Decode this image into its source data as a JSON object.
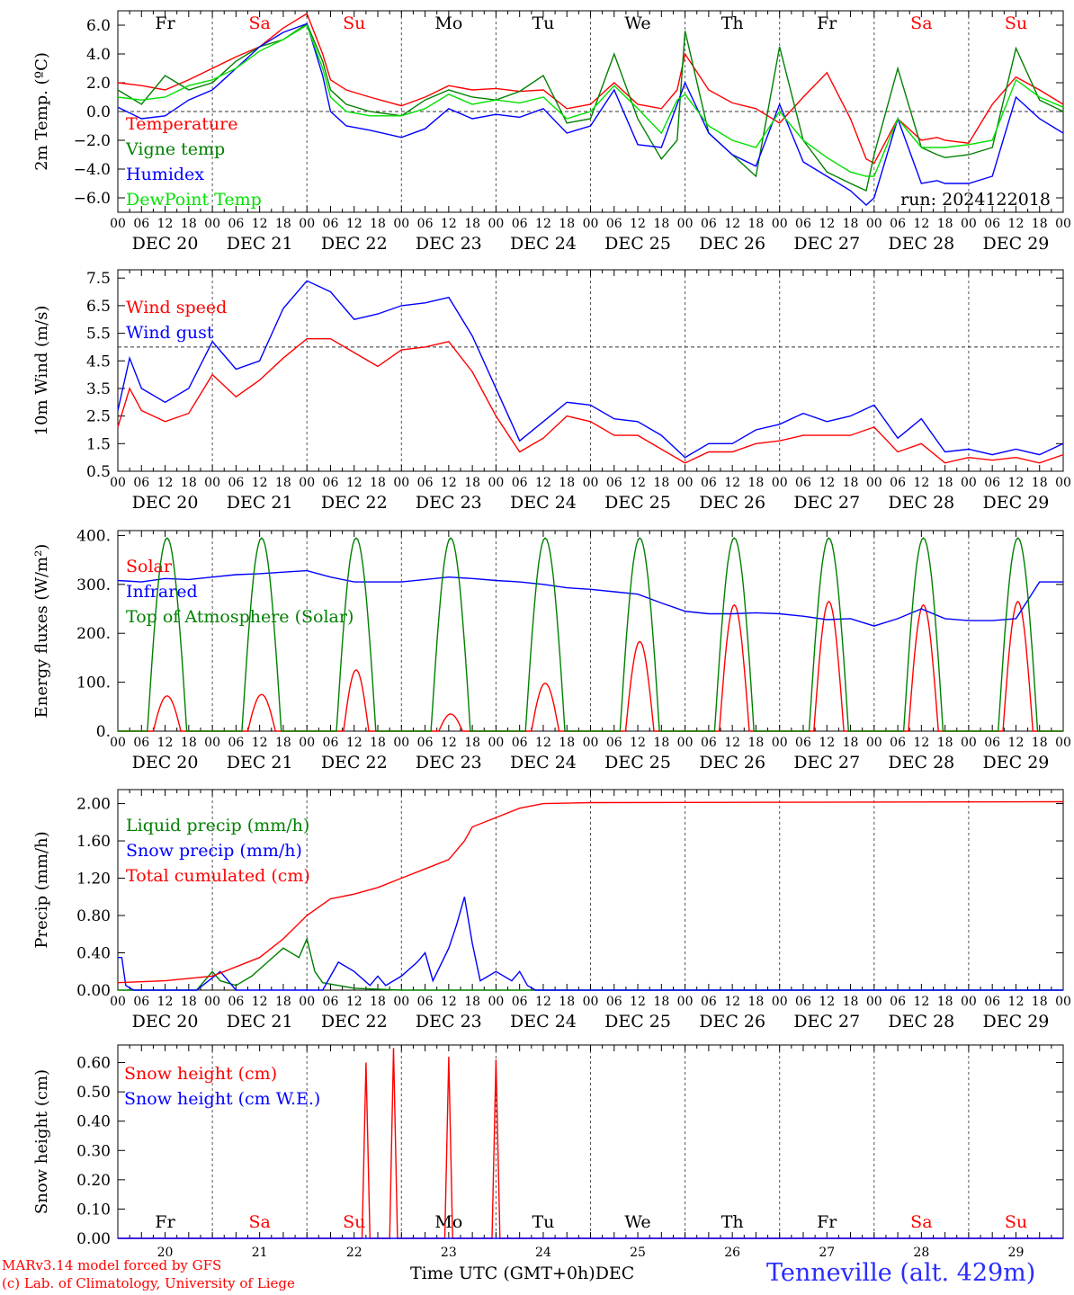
{
  "run_label": "run: 2024122018",
  "footer": {
    "model": "MARv3.14 model forced by GFS",
    "lab": "(c) Lab. of Climatology, University of Liege",
    "xlabel": "Time UTC (GMT+0h)",
    "xlabel_month": "DEC",
    "station": "Tenneville (alt. 429m)"
  },
  "weekdays": [
    {
      "label": "Fr",
      "color": "#000000"
    },
    {
      "label": "Sa",
      "color": "#ff0000"
    },
    {
      "label": "Su",
      "color": "#ff0000"
    },
    {
      "label": "Mo",
      "color": "#000000"
    },
    {
      "label": "Tu",
      "color": "#000000"
    },
    {
      "label": "We",
      "color": "#000000"
    },
    {
      "label": "Th",
      "color": "#000000"
    },
    {
      "label": "Fr",
      "color": "#000000"
    },
    {
      "label": "Sa",
      "color": "#ff0000"
    },
    {
      "label": "Su",
      "color": "#ff0000"
    }
  ],
  "date_labels": [
    "DEC 20",
    "DEC 21",
    "DEC 22",
    "DEC 23",
    "DEC 24",
    "DEC 25",
    "DEC 26",
    "DEC 27",
    "DEC 28",
    "DEC 29"
  ],
  "day_numbers": [
    "20",
    "21",
    "22",
    "23",
    "24",
    "25",
    "26",
    "27",
    "28",
    "29"
  ],
  "hour_labels": [
    "00",
    "06",
    "12",
    "18"
  ],
  "colors": {
    "red": "#ff0000",
    "green": "#008000",
    "blue": "#0000ff",
    "lightgreen": "#00e000"
  },
  "chart_data": [
    {
      "type": "line",
      "id": "temperature",
      "ylabel": "2m Temp. (ºC)",
      "x_unit": "hours since 2024-12-20 00 UTC",
      "xlim": [
        0,
        240
      ],
      "ylim": [
        -7,
        7
      ],
      "yticks": [
        -6,
        -4,
        -2,
        0,
        2,
        4,
        6
      ],
      "ytick_labels": [
        "−6.0",
        "−4.0",
        "−2.0",
        "0.0",
        "2.0",
        "4.0",
        "6.0"
      ],
      "ref_line": 0,
      "series": [
        {
          "name": "Temperature",
          "color": "#ff0000",
          "x": [
            0,
            6,
            12,
            18,
            24,
            30,
            36,
            42,
            48,
            52,
            54,
            58,
            64,
            72,
            78,
            84,
            90,
            96,
            102,
            108,
            114,
            120,
            126,
            132,
            138,
            142,
            144,
            150,
            156,
            162,
            168,
            174,
            180,
            186,
            190,
            192,
            198,
            204,
            208,
            210,
            216,
            222,
            228,
            234,
            240
          ],
          "y": [
            2.0,
            1.8,
            1.5,
            2.2,
            3.0,
            3.8,
            4.5,
            5.8,
            6.8,
            4.0,
            2.2,
            1.5,
            1.0,
            0.4,
            1.0,
            1.8,
            1.5,
            1.6,
            1.4,
            1.5,
            0.2,
            0.5,
            2.0,
            0.5,
            0.2,
            1.5,
            4.0,
            1.5,
            0.6,
            0.2,
            -0.8,
            1.0,
            2.7,
            -0.5,
            -3.3,
            -3.6,
            -0.5,
            -2.0,
            -1.8,
            -2.0,
            -2.2,
            0.5,
            2.4,
            1.5,
            0.5
          ]
        },
        {
          "name": "Vigne temp",
          "color": "#008000",
          "x": [
            0,
            6,
            12,
            18,
            24,
            30,
            36,
            42,
            48,
            52,
            54,
            58,
            64,
            72,
            78,
            84,
            90,
            96,
            102,
            108,
            114,
            120,
            126,
            132,
            138,
            142,
            144,
            150,
            156,
            162,
            168,
            174,
            180,
            186,
            190,
            192,
            198,
            204,
            208,
            210,
            216,
            222,
            228,
            234,
            240
          ],
          "y": [
            1.5,
            0.5,
            2.5,
            1.5,
            2.0,
            3.5,
            4.5,
            5.0,
            6.1,
            3.5,
            1.5,
            0.5,
            0.0,
            -0.3,
            0.8,
            1.5,
            1.0,
            0.8,
            1.4,
            2.5,
            -0.8,
            -0.5,
            4.0,
            -0.5,
            -3.3,
            -2.0,
            5.6,
            -1.5,
            -3.0,
            -4.5,
            4.5,
            -2.0,
            -4.2,
            -5.0,
            -5.5,
            -3.0,
            3.0,
            -2.5,
            -3.0,
            -3.2,
            -3.0,
            -2.5,
            4.4,
            0.8,
            0.0
          ]
        },
        {
          "name": "Humidex",
          "color": "#0000ff",
          "x": [
            0,
            6,
            12,
            18,
            24,
            30,
            36,
            42,
            48,
            52,
            54,
            58,
            64,
            72,
            78,
            84,
            90,
            96,
            102,
            108,
            114,
            120,
            126,
            132,
            138,
            142,
            144,
            150,
            156,
            162,
            168,
            174,
            180,
            186,
            190,
            192,
            198,
            204,
            208,
            210,
            216,
            222,
            228,
            234,
            240
          ],
          "y": [
            0.3,
            -0.5,
            -0.3,
            0.8,
            1.5,
            3.0,
            4.5,
            5.5,
            6.1,
            2.5,
            0.0,
            -1.0,
            -1.3,
            -1.8,
            -1.2,
            0.2,
            -0.5,
            -0.2,
            -0.4,
            0.2,
            -1.5,
            -1.0,
            1.5,
            -2.3,
            -2.5,
            0.5,
            2.0,
            -1.5,
            -3.0,
            -3.8,
            0.5,
            -3.5,
            -4.5,
            -5.5,
            -6.5,
            -6.0,
            -0.5,
            -5.0,
            -4.8,
            -5.0,
            -5.0,
            -4.5,
            1.0,
            -0.5,
            -1.5
          ]
        },
        {
          "name": "DewPoint Temp",
          "color": "#00e000",
          "x": [
            0,
            6,
            12,
            18,
            24,
            30,
            36,
            42,
            48,
            52,
            54,
            58,
            64,
            72,
            78,
            84,
            90,
            96,
            102,
            108,
            114,
            120,
            126,
            132,
            138,
            142,
            144,
            150,
            156,
            162,
            168,
            174,
            180,
            186,
            190,
            192,
            198,
            204,
            208,
            210,
            216,
            222,
            228,
            234,
            240
          ],
          "y": [
            1.0,
            0.8,
            1.0,
            1.8,
            2.2,
            3.0,
            4.2,
            5.0,
            6.0,
            3.0,
            1.0,
            0.0,
            -0.3,
            -0.3,
            0.2,
            1.2,
            0.5,
            0.8,
            0.6,
            1.0,
            -0.5,
            0.0,
            1.8,
            0.2,
            -1.5,
            0.8,
            1.2,
            -1.0,
            -2.0,
            -2.5,
            0.0,
            -2.0,
            -3.2,
            -4.2,
            -4.5,
            -4.5,
            -0.5,
            -2.5,
            -2.5,
            -2.5,
            -2.3,
            -2.0,
            2.2,
            1.0,
            0.3
          ]
        }
      ]
    },
    {
      "type": "line",
      "id": "wind",
      "ylabel": "10m Wind (m/s)",
      "x_unit": "hours since 2024-12-20 00 UTC",
      "xlim": [
        0,
        240
      ],
      "ylim": [
        0.5,
        7.8
      ],
      "yticks": [
        0.5,
        1.5,
        2.5,
        3.5,
        4.5,
        5.5,
        6.5,
        7.5
      ],
      "ytick_labels": [
        "0.5",
        "1.5",
        "2.5",
        "3.5",
        "4.5",
        "5.5",
        "6.5",
        "7.5"
      ],
      "ref_line": 5,
      "series": [
        {
          "name": "Wind speed",
          "color": "#ff0000",
          "x": [
            0,
            3,
            6,
            12,
            18,
            24,
            30,
            36,
            42,
            48,
            54,
            60,
            66,
            72,
            78,
            84,
            90,
            96,
            102,
            108,
            114,
            120,
            126,
            132,
            138,
            144,
            150,
            156,
            162,
            168,
            174,
            180,
            186,
            192,
            198,
            204,
            210,
            216,
            222,
            228,
            234,
            240
          ],
          "y": [
            2.1,
            3.5,
            2.7,
            2.3,
            2.6,
            4.0,
            3.2,
            3.8,
            4.6,
            5.3,
            5.3,
            4.8,
            4.3,
            4.9,
            5.0,
            5.2,
            4.1,
            2.5,
            1.2,
            1.7,
            2.5,
            2.3,
            1.8,
            1.8,
            1.3,
            0.8,
            1.2,
            1.2,
            1.5,
            1.6,
            1.8,
            1.8,
            1.8,
            2.1,
            1.2,
            1.5,
            0.8,
            1.0,
            0.9,
            1.0,
            0.8,
            1.1
          ]
        },
        {
          "name": "Wind gust",
          "color": "#0000ff",
          "x": [
            0,
            3,
            6,
            12,
            18,
            24,
            30,
            36,
            42,
            48,
            54,
            60,
            66,
            72,
            78,
            84,
            90,
            96,
            102,
            108,
            114,
            120,
            126,
            132,
            138,
            144,
            150,
            156,
            162,
            168,
            174,
            180,
            186,
            192,
            198,
            204,
            210,
            216,
            222,
            228,
            234,
            240
          ],
          "y": [
            2.7,
            4.6,
            3.5,
            3.0,
            3.5,
            5.2,
            4.2,
            4.5,
            6.4,
            7.4,
            7.0,
            6.0,
            6.2,
            6.5,
            6.6,
            6.8,
            5.4,
            3.5,
            1.6,
            2.3,
            3.0,
            2.9,
            2.4,
            2.3,
            1.8,
            1.0,
            1.5,
            1.5,
            2.0,
            2.2,
            2.6,
            2.3,
            2.5,
            2.9,
            1.7,
            2.4,
            1.2,
            1.3,
            1.1,
            1.3,
            1.1,
            1.5
          ]
        }
      ]
    },
    {
      "type": "line",
      "id": "energy",
      "ylabel": "Energy fluxes (W/m²)",
      "x_unit": "hours since 2024-12-20 00 UTC",
      "xlim": [
        0,
        240
      ],
      "ylim": [
        0,
        410
      ],
      "yticks": [
        0,
        100,
        200,
        300,
        400
      ],
      "ytick_labels": [
        "0.",
        "100.",
        "200.",
        "300.",
        "400."
      ],
      "series": [
        {
          "name": "Solar",
          "color": "#ff0000",
          "peaks": [
            72,
            75,
            125,
            35,
            98,
            183,
            258,
            265,
            258,
            265
          ]
        },
        {
          "name": "Infrared",
          "color": "#0000ff",
          "x": [
            0,
            6,
            12,
            18,
            24,
            30,
            36,
            42,
            48,
            54,
            60,
            66,
            72,
            78,
            84,
            90,
            96,
            102,
            108,
            114,
            120,
            126,
            132,
            138,
            144,
            150,
            156,
            162,
            168,
            174,
            180,
            186,
            192,
            198,
            204,
            210,
            216,
            222,
            228,
            234,
            240
          ],
          "y": [
            308,
            305,
            312,
            310,
            315,
            320,
            322,
            325,
            328,
            315,
            305,
            305,
            305,
            310,
            315,
            312,
            308,
            305,
            300,
            293,
            290,
            285,
            280,
            262,
            245,
            240,
            240,
            242,
            240,
            235,
            228,
            230,
            215,
            230,
            250,
            230,
            226,
            226,
            230,
            305,
            305
          ]
        },
        {
          "name": "Top of Atmosphere (Solar)",
          "color": "#008000",
          "peaks": [
            395,
            395,
            395,
            395,
            395,
            395,
            395,
            395,
            395,
            395
          ]
        }
      ]
    },
    {
      "type": "line",
      "id": "precip",
      "ylabel": "Precip (mm/h)",
      "x_unit": "hours since 2024-12-20 00 UTC",
      "xlim": [
        0,
        240
      ],
      "ylim": [
        0,
        2.15
      ],
      "yticks": [
        0,
        0.4,
        0.8,
        1.2,
        1.6,
        2.0
      ],
      "ytick_labels": [
        "0.00",
        "0.40",
        "0.80",
        "1.20",
        "1.60",
        "2.00"
      ],
      "series": [
        {
          "name": "Liquid precip (mm/h)",
          "color": "#008000",
          "x": [
            0,
            20,
            24,
            26,
            30,
            34,
            38,
            42,
            46,
            48,
            50,
            52,
            56,
            60,
            66,
            72,
            90,
            96,
            240
          ],
          "y": [
            0,
            0,
            0.2,
            0.1,
            0.05,
            0.15,
            0.3,
            0.45,
            0.35,
            0.55,
            0.2,
            0.08,
            0.05,
            0.02,
            0.01,
            0,
            0,
            0,
            0
          ]
        },
        {
          "name": "Snow precip (mm/h)",
          "color": "#0000ff",
          "x": [
            0,
            1,
            2,
            4,
            20,
            26,
            28,
            30,
            52,
            56,
            60,
            64,
            66,
            68,
            72,
            76,
            78,
            80,
            84,
            86,
            88,
            90,
            92,
            96,
            100,
            102,
            104,
            106,
            108,
            240
          ],
          "y": [
            0.35,
            0.35,
            0.05,
            0,
            0,
            0.2,
            0.1,
            0,
            0,
            0.3,
            0.2,
            0.05,
            0.15,
            0.05,
            0.15,
            0.3,
            0.4,
            0.1,
            0.45,
            0.7,
            1.0,
            0.5,
            0.1,
            0.2,
            0.1,
            0.2,
            0.05,
            0,
            0,
            0
          ]
        },
        {
          "name": "Total cumulated (cm)",
          "color": "#ff0000",
          "x": [
            0,
            12,
            24,
            36,
            42,
            48,
            54,
            60,
            66,
            72,
            78,
            84,
            88,
            90,
            96,
            102,
            108,
            120,
            240
          ],
          "y": [
            0.08,
            0.1,
            0.15,
            0.35,
            0.55,
            0.8,
            0.98,
            1.03,
            1.1,
            1.2,
            1.3,
            1.4,
            1.6,
            1.75,
            1.85,
            1.95,
            2.0,
            2.01,
            2.02
          ]
        }
      ]
    },
    {
      "type": "line",
      "id": "snow",
      "ylabel": "Snow height (cm)",
      "x_unit": "hours since 2024-12-20 00 UTC",
      "xlim": [
        0,
        240
      ],
      "ylim": [
        0,
        0.66
      ],
      "yticks": [
        0,
        0.1,
        0.2,
        0.3,
        0.4,
        0.5,
        0.6
      ],
      "ytick_labels": [
        "0.00",
        "0.10",
        "0.20",
        "0.30",
        "0.40",
        "0.50",
        "0.60"
      ],
      "series": [
        {
          "name": "Snow height (cm)",
          "color": "#ff0000",
          "x": [
            0,
            62,
            63,
            64,
            69,
            70,
            71,
            83,
            84,
            85,
            95,
            96,
            97,
            240
          ],
          "y": [
            0,
            0,
            0.6,
            0,
            0,
            0.65,
            0,
            0,
            0.62,
            0,
            0,
            0.61,
            0,
            0
          ]
        },
        {
          "name": "Snow height (cm W.E.)",
          "color": "#0000ff",
          "x": [
            0,
            240
          ],
          "y": [
            0,
            0
          ]
        }
      ]
    }
  ]
}
